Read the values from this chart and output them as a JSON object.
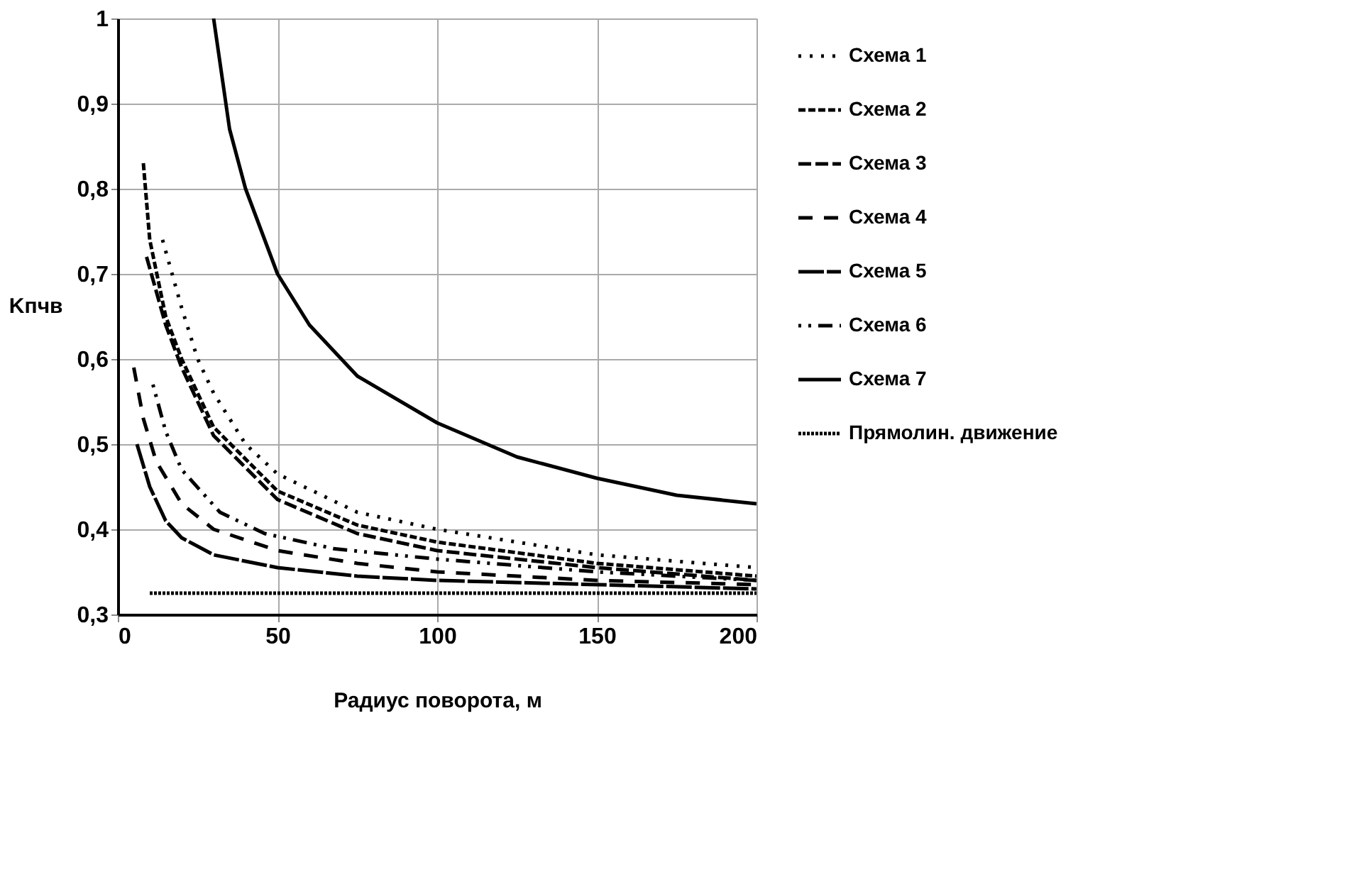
{
  "chart_data": {
    "type": "line",
    "xlabel": "Радиус поворота, м",
    "ylabel": "Kпчв",
    "xlim": [
      0,
      200
    ],
    "xticks": [
      0,
      50,
      100,
      150,
      200
    ],
    "ylim": [
      0.3,
      1
    ],
    "yticks": [
      {
        "value": 0.3,
        "label": "0,3"
      },
      {
        "value": 0.4,
        "label": "0,4"
      },
      {
        "value": 0.5,
        "label": "0,5"
      },
      {
        "value": 0.6,
        "label": "0,6"
      },
      {
        "value": 0.7,
        "label": "0,7"
      },
      {
        "value": 0.8,
        "label": "0,8"
      },
      {
        "value": 0.9,
        "label": "0,9"
      },
      1
    ],
    "grid": true,
    "legend": "right",
    "marker": "none",
    "series": [
      {
        "name": "Схема 1",
        "color": "#000000",
        "line_style": "dotted",
        "x": [
          14,
          17,
          20,
          25,
          30,
          40,
          50,
          75,
          100,
          150,
          200
        ],
        "values": [
          0.74,
          0.7,
          0.66,
          0.6,
          0.56,
          0.5,
          0.465,
          0.42,
          0.4,
          0.37,
          0.355
        ]
      },
      {
        "name": "Схема 2",
        "color": "#000000",
        "line_style": "dashed",
        "x": [
          8,
          10,
          15,
          20,
          30,
          50,
          75,
          100,
          150,
          200
        ],
        "values": [
          0.83,
          0.74,
          0.65,
          0.6,
          0.52,
          0.445,
          0.405,
          0.385,
          0.36,
          0.345
        ]
      },
      {
        "name": "Схема 3",
        "color": "#000000",
        "line_style": "dashed",
        "x": [
          9,
          12,
          15,
          20,
          30,
          50,
          75,
          100,
          150,
          200
        ],
        "values": [
          0.72,
          0.68,
          0.64,
          0.59,
          0.51,
          0.435,
          0.395,
          0.375,
          0.355,
          0.34
        ]
      },
      {
        "name": "Схема 4",
        "color": "#000000",
        "line_style": "dashed",
        "x": [
          5,
          8,
          12,
          20,
          30,
          50,
          75,
          100,
          150,
          200
        ],
        "values": [
          0.59,
          0.53,
          0.48,
          0.43,
          0.4,
          0.375,
          0.36,
          0.35,
          0.34,
          0.335
        ]
      },
      {
        "name": "Схема 5",
        "color": "#000000",
        "line_style": "dashed",
        "x": [
          6,
          10,
          15,
          20,
          30,
          50,
          75,
          100,
          150,
          200
        ],
        "values": [
          0.5,
          0.45,
          0.41,
          0.39,
          0.37,
          0.355,
          0.345,
          0.34,
          0.335,
          0.33
        ]
      },
      {
        "name": "Схема 6",
        "color": "#000000",
        "line_style": "dashed",
        "x": [
          11,
          15,
          20,
          32,
          46,
          68,
          100,
          150,
          200
        ],
        "values": [
          0.57,
          0.515,
          0.47,
          0.42,
          0.395,
          0.377,
          0.365,
          0.35,
          0.34
        ]
      },
      {
        "name": "Схема 7",
        "color": "#000000",
        "line_style": "solid",
        "x": [
          30,
          35,
          40,
          50,
          60,
          75,
          100,
          125,
          150,
          175,
          200
        ],
        "values": [
          1.0,
          0.87,
          0.8,
          0.7,
          0.64,
          0.58,
          0.525,
          0.485,
          0.46,
          0.44,
          0.43
        ]
      },
      {
        "name": "Прямолин. движение",
        "color": "#000000",
        "line_style": "dotted",
        "x": [
          10,
          200
        ],
        "values": [
          0.325,
          0.325
        ]
      }
    ]
  }
}
